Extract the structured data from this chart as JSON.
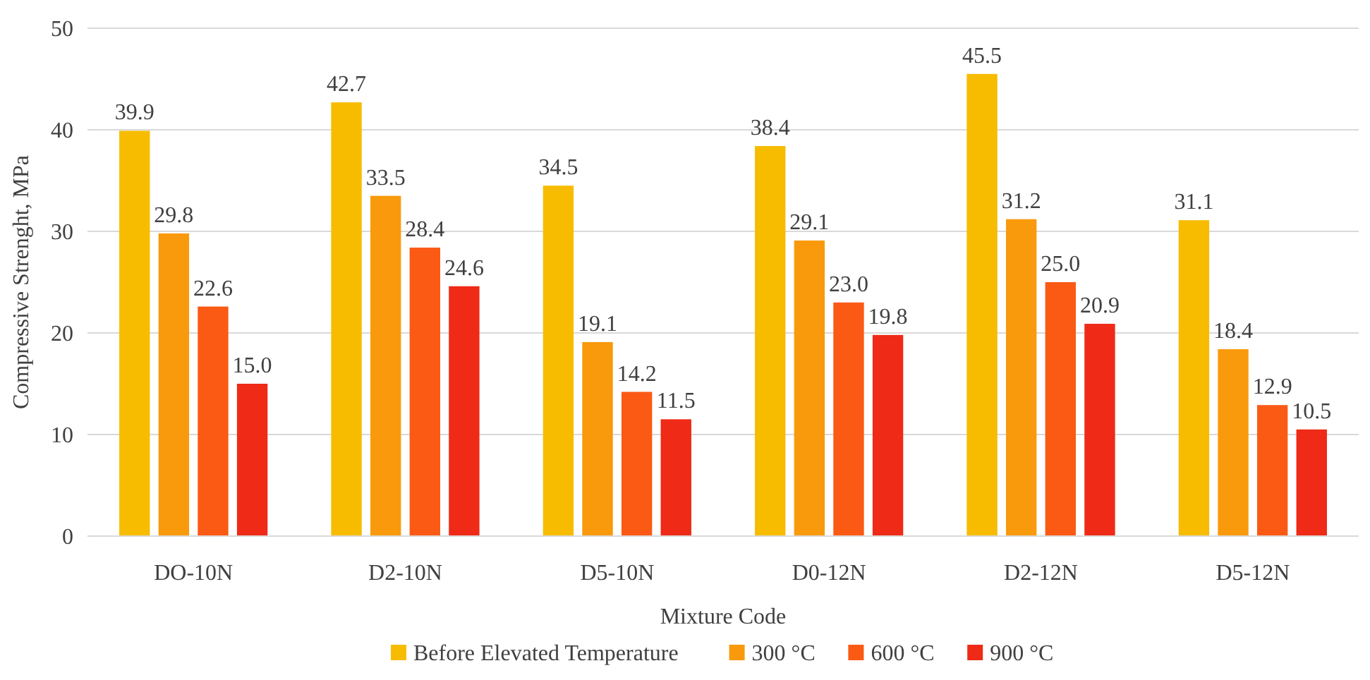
{
  "chart_data": {
    "type": "bar",
    "xlabel": "Mixture Code",
    "ylabel": "Compressive Strenght, MPa",
    "categories": [
      "DO-10N",
      "D2-10N",
      "D5-10N",
      "D0-12N",
      "D2-12N",
      "D5-12N"
    ],
    "series": [
      {
        "name": "Before Elevated Temperature",
        "color": "#f7bc00",
        "values": [
          39.9,
          42.7,
          34.5,
          38.4,
          45.5,
          31.1
        ],
        "value_labels": [
          "39.9",
          "42.7",
          "34.5",
          "38.4",
          "45.5",
          "31.1"
        ]
      },
      {
        "name": "300 °C",
        "color": "#f89a0c",
        "values": [
          29.8,
          33.5,
          19.1,
          29.1,
          31.2,
          18.4
        ],
        "value_labels": [
          "29.8",
          "33.5",
          "19.1",
          "29.1",
          "31.2",
          "18.4"
        ]
      },
      {
        "name": "600 °C",
        "color": "#fb5a14",
        "values": [
          22.6,
          28.4,
          14.2,
          23,
          25,
          12.9
        ],
        "value_labels": [
          "22.6",
          "28.4",
          "14.2",
          "23.0",
          "25.0",
          "12.9"
        ]
      },
      {
        "name": "900 °C",
        "color": "#ef2a16",
        "values": [
          15,
          24.6,
          11.5,
          19.8,
          20.9,
          10.5
        ],
        "value_labels": [
          "15.0",
          "24.6",
          "11.5",
          "19.8",
          "20.9",
          "10.5"
        ]
      }
    ],
    "ylim": [
      0,
      50
    ],
    "yticks": [
      0,
      10,
      20,
      30,
      40,
      50
    ],
    "grid": "y",
    "legend": "bottom"
  }
}
